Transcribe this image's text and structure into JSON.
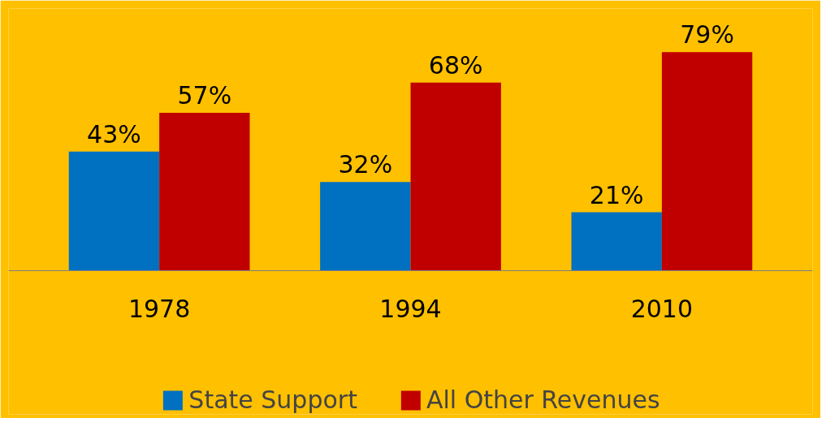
{
  "chart_data": {
    "type": "bar",
    "categories": [
      "1978",
      "1994",
      "2010"
    ],
    "series": [
      {
        "name": "State Support",
        "color": "#0070c0",
        "values": [
          43,
          32,
          21
        ],
        "value_labels": [
          "43%",
          "32%",
          "21%"
        ]
      },
      {
        "name": "All Other Revenues",
        "color": "#c00000",
        "values": [
          57,
          68,
          79
        ],
        "value_labels": [
          "57%",
          "68%",
          "79%"
        ]
      }
    ],
    "legend": "bottom"
  }
}
